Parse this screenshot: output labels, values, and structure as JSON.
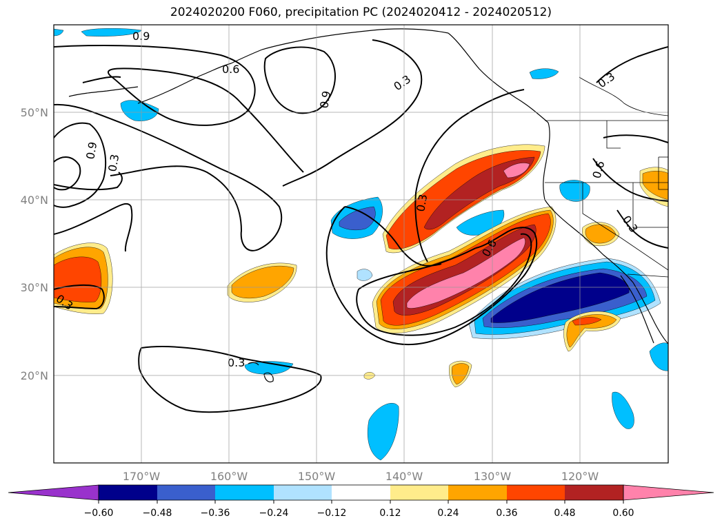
{
  "title": "2024020200 F060, precipitation PC (2024020412 - 2024020512)",
  "lat_labels": [
    "50°N",
    "40°N",
    "30°N",
    "20°N"
  ],
  "lon_labels": [
    "170°W",
    "160°W",
    "150°W",
    "140°W",
    "130°W",
    "120°W"
  ],
  "contour_labels": [
    "0.9",
    "0.6",
    "0.9",
    "0.3",
    "0.3",
    "0.9",
    "0.6",
    "0.3",
    "0.6",
    "0.3",
    "0.3",
    "0.3",
    "0.3"
  ],
  "colorbar": {
    "ticks": [
      "−0.60",
      "−0.48",
      "−0.36",
      "−0.24",
      "−0.12",
      "0.12",
      "0.24",
      "0.36",
      "0.48",
      "0.60"
    ],
    "colors": [
      "#9932cc",
      "#00008b",
      "#3a5fcd",
      "#00bfff",
      "#b0e2ff",
      "#ffffff",
      "#ffec8b",
      "#ffa500",
      "#ff4500",
      "#b22222",
      "#ff82ab"
    ]
  },
  "colors": {
    "neg_weak": "#b0e2ff",
    "neg_mid": "#00bfff",
    "neg_strong": "#3a5fcd",
    "neg_max": "#00008b",
    "pos_weak": "#ffec8b",
    "pos_mid": "#ffa500",
    "pos_strong": "#ff4500",
    "pos_high": "#b22222",
    "pos_max": "#ff82ab"
  }
}
